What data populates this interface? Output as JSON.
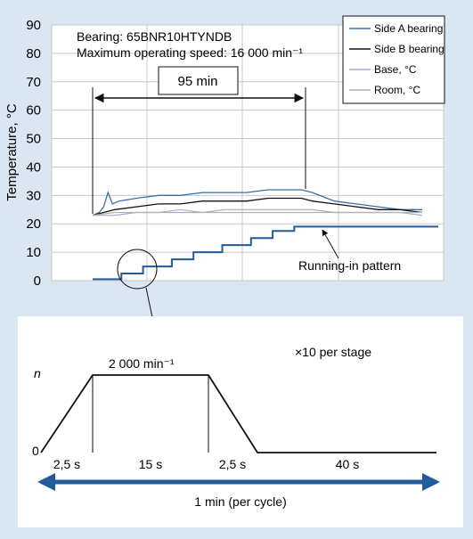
{
  "chart_data": [
    {
      "type": "line",
      "ylabel": "Temperature, °C",
      "ylim": [
        0,
        90
      ],
      "yticks": [
        0,
        10,
        20,
        30,
        40,
        50,
        60,
        70,
        80,
        90
      ],
      "grid": true,
      "legend_position": "top-right",
      "annotations": {
        "bearing": "Bearing: 65BNR10HTYNDB",
        "max_speed": "Maximum operating speed: 16 000 min⁻¹",
        "duration": "95 min",
        "pattern": "Running-in pattern"
      },
      "series": [
        {
          "name": "Side A bearing",
          "color": "#3a6ea8",
          "values": [
            [
              0,
              23
            ],
            [
              3,
              24
            ],
            [
              5,
              26
            ],
            [
              7,
              31
            ],
            [
              9,
              27
            ],
            [
              12,
              28
            ],
            [
              20,
              29
            ],
            [
              30,
              30
            ],
            [
              40,
              30
            ],
            [
              50,
              31
            ],
            [
              60,
              31
            ],
            [
              70,
              31
            ],
            [
              80,
              32
            ],
            [
              90,
              32
            ],
            [
              95,
              32
            ],
            [
              100,
              31
            ],
            [
              110,
              28
            ],
            [
              120,
              27
            ],
            [
              130,
              26
            ],
            [
              140,
              25
            ],
            [
              150,
              25
            ]
          ]
        },
        {
          "name": "Side B bearing",
          "color": "#111111",
          "values": [
            [
              0,
              23
            ],
            [
              5,
              24
            ],
            [
              10,
              25
            ],
            [
              20,
              26
            ],
            [
              30,
              27
            ],
            [
              40,
              27
            ],
            [
              50,
              28
            ],
            [
              60,
              28
            ],
            [
              70,
              28
            ],
            [
              80,
              29
            ],
            [
              90,
              29
            ],
            [
              95,
              29
            ],
            [
              100,
              28
            ],
            [
              110,
              27
            ],
            [
              120,
              26
            ],
            [
              130,
              25
            ],
            [
              140,
              25
            ],
            [
              150,
              24
            ]
          ]
        },
        {
          "name": "Base, °C",
          "color": "#a6a6cf",
          "values": [
            [
              0,
              23
            ],
            [
              10,
              23
            ],
            [
              20,
              24
            ],
            [
              30,
              24
            ],
            [
              40,
              24
            ],
            [
              50,
              24
            ],
            [
              60,
              25
            ],
            [
              70,
              25
            ],
            [
              80,
              25
            ],
            [
              90,
              25
            ],
            [
              100,
              25
            ],
            [
              110,
              24
            ],
            [
              120,
              24
            ],
            [
              130,
              24
            ],
            [
              140,
              24
            ],
            [
              150,
              23
            ]
          ]
        },
        {
          "name": "Room, °C",
          "color": "#b3b3b3",
          "values": [
            [
              0,
              23
            ],
            [
              10,
              24
            ],
            [
              20,
              24
            ],
            [
              30,
              24
            ],
            [
              40,
              25
            ],
            [
              50,
              24
            ],
            [
              60,
              24
            ],
            [
              70,
              24
            ],
            [
              80,
              24
            ],
            [
              90,
              24
            ],
            [
              100,
              24
            ],
            [
              110,
              24
            ],
            [
              120,
              24
            ],
            [
              130,
              24
            ],
            [
              140,
              24
            ],
            [
              150,
              24
            ]
          ]
        }
      ],
      "running_in_pattern": {
        "color": "#1f5c99",
        "values": [
          [
            0,
            0.5
          ],
          [
            20,
            0.5
          ],
          [
            20,
            2.5
          ],
          [
            35,
            2.5
          ],
          [
            35,
            5
          ],
          [
            55,
            5
          ],
          [
            55,
            7.5
          ],
          [
            70,
            7.5
          ],
          [
            70,
            10
          ],
          [
            90,
            10
          ],
          [
            90,
            12.5
          ],
          [
            110,
            12.5
          ],
          [
            110,
            15
          ],
          [
            125,
            15
          ],
          [
            125,
            17.5
          ],
          [
            140,
            17.5
          ],
          [
            140,
            19
          ],
          [
            240,
            19
          ]
        ]
      }
    },
    {
      "type": "line",
      "ylabel": "n",
      "yzero": "0",
      "speed_label": "2 000 min⁻¹",
      "note": "×10 per stage",
      "cycle_label": "1 min (per cycle)",
      "segments": [
        {
          "label": "2,5 s",
          "seconds": 2.5
        },
        {
          "label": "15 s",
          "seconds": 15
        },
        {
          "label": "2,5 s",
          "seconds": 2.5
        },
        {
          "label": "40 s",
          "seconds": 40
        }
      ],
      "profile": [
        [
          0,
          0
        ],
        [
          2.5,
          1
        ],
        [
          17.5,
          1
        ],
        [
          20,
          0
        ],
        [
          60,
          0
        ]
      ]
    }
  ],
  "colors": {
    "background": "#dbe6f3",
    "plot_background": "#ffffff",
    "grid": "#c8c8c8",
    "accent_blue": "#1f5c99"
  }
}
